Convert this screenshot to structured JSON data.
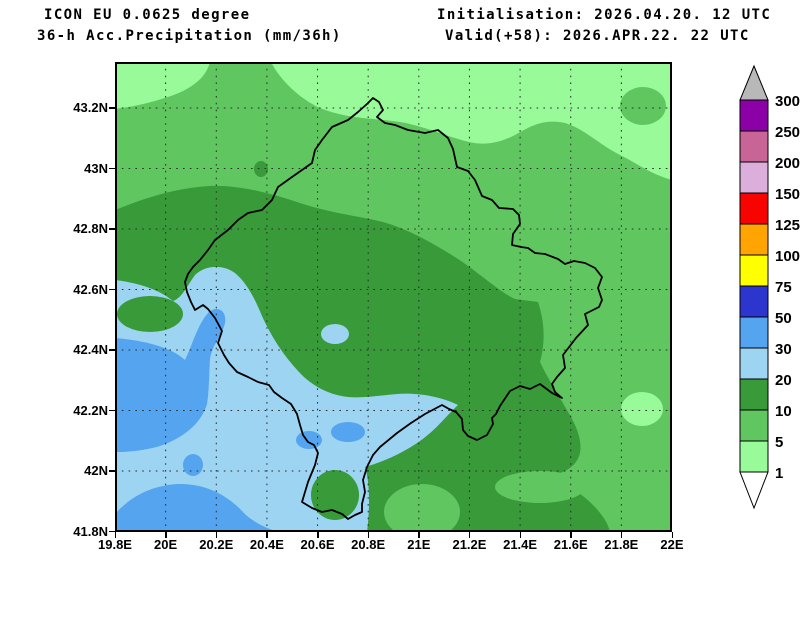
{
  "header": {
    "model_line": "ICON EU 0.0625 degree",
    "product_line": "36-h Acc.Precipitation (mm/36h)",
    "init_line": "Initialisation: 2026.04.20. 12 UTC",
    "valid_line": "Valid(+58): 2026.APR.22. 22 UTC"
  },
  "axes": {
    "lat_labels": [
      "43.2N",
      "43N",
      "42.8N",
      "42.6N",
      "42.4N",
      "42.2N",
      "42N",
      "41.8N"
    ],
    "lon_labels": [
      "19.8E",
      "20E",
      "20.2E",
      "20.4E",
      "20.6E",
      "20.8E",
      "21E",
      "21.2E",
      "21.4E",
      "21.6E",
      "21.8E",
      "22E"
    ]
  },
  "legend": {
    "tick_labels": [
      "300",
      "250",
      "200",
      "150",
      "125",
      "100",
      "75",
      "50",
      "30",
      "20",
      "10",
      "5",
      "1"
    ],
    "segment_colors_top_to_bottom": [
      "#8c00a8",
      "#c86496",
      "#dcaedc",
      "#f80400",
      "#ffa400",
      "#ffff00",
      "#2d35cf",
      "#55a4f0",
      "#9cd4f2",
      "#389a38",
      "#60c660",
      "#98fa98"
    ],
    "above_max_color": "#b8b8b8",
    "below_min_color": "#ffffff"
  },
  "map": {
    "field_colors": {
      "light_green_1_5mm": "#98fa98",
      "medium_green_5_10mm": "#60c660",
      "dark_green_10_20mm": "#389a38",
      "light_blue_20_30mm": "#9cd4f2",
      "medium_blue_30_50mm": "#55a4f0"
    },
    "border_color": "#000000",
    "grid_color": "#2a2a2a"
  }
}
